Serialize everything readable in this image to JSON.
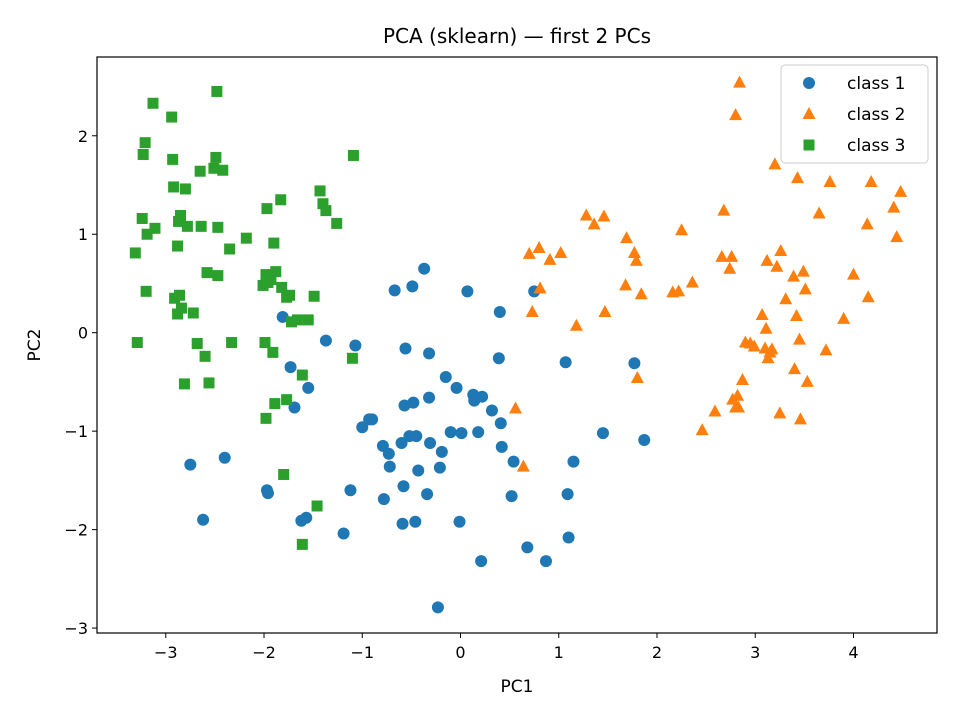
{
  "chart_data": {
    "type": "scatter",
    "title": "PCA (sklearn) — first 2 PCs",
    "xlabel": "PC1",
    "ylabel": "PC2",
    "xlim": [
      -3.7,
      4.85
    ],
    "ylim": [
      -3.05,
      2.8
    ],
    "xticks": [
      -3,
      -2,
      -1,
      0,
      1,
      2,
      3,
      4
    ],
    "yticks": [
      -3,
      -2,
      -1,
      0,
      1,
      2
    ],
    "xtick_labels": [
      "−3",
      "−2",
      "−1",
      "0",
      "1",
      "2",
      "3",
      "4"
    ],
    "ytick_labels": [
      "−3",
      "−2",
      "−1",
      "0",
      "1",
      "2"
    ],
    "grid": false,
    "legend_position": "top-right",
    "series": [
      {
        "name": "class 1",
        "marker": "circle",
        "color": "#1f77b4",
        "points": [
          [
            -2.75,
            -1.34
          ],
          [
            -2.62,
            -1.9
          ],
          [
            -2.4,
            -1.27
          ],
          [
            -1.97,
            -1.6
          ],
          [
            -1.96,
            -1.63
          ],
          [
            -1.81,
            0.16
          ],
          [
            -1.73,
            -0.35
          ],
          [
            -1.69,
            -0.76
          ],
          [
            -1.62,
            -1.91
          ],
          [
            -1.57,
            -1.88
          ],
          [
            -1.55,
            -0.56
          ],
          [
            -1.37,
            -0.08
          ],
          [
            -1.19,
            -2.04
          ],
          [
            -1.12,
            -1.6
          ],
          [
            -1.07,
            -0.13
          ],
          [
            -1.0,
            -0.96
          ],
          [
            -0.93,
            -0.88
          ],
          [
            -0.9,
            -0.88
          ],
          [
            -0.79,
            -1.15
          ],
          [
            -0.78,
            -1.69
          ],
          [
            -0.73,
            -1.23
          ],
          [
            -0.72,
            -1.36
          ],
          [
            -0.67,
            0.43
          ],
          [
            -0.6,
            -1.12
          ],
          [
            -0.59,
            -1.94
          ],
          [
            -0.58,
            -1.56
          ],
          [
            -0.57,
            -0.74
          ],
          [
            -0.56,
            -0.16
          ],
          [
            -0.52,
            -1.05
          ],
          [
            -0.49,
            0.47
          ],
          [
            -0.48,
            -0.71
          ],
          [
            -0.46,
            -1.92
          ],
          [
            -0.45,
            -1.05
          ],
          [
            -0.43,
            -1.4
          ],
          [
            -0.37,
            0.65
          ],
          [
            -0.34,
            -1.64
          ],
          [
            -0.32,
            -0.66
          ],
          [
            -0.32,
            -0.21
          ],
          [
            -0.31,
            -1.12
          ],
          [
            -0.23,
            -2.79
          ],
          [
            -0.21,
            -1.37
          ],
          [
            -0.19,
            -1.21
          ],
          [
            -0.15,
            -0.45
          ],
          [
            -0.1,
            -1.01
          ],
          [
            -0.04,
            -0.56
          ],
          [
            -0.01,
            -1.92
          ],
          [
            0.01,
            -1.02
          ],
          [
            0.07,
            0.42
          ],
          [
            0.13,
            -0.63
          ],
          [
            0.14,
            -0.69
          ],
          [
            0.18,
            -1.01
          ],
          [
            0.21,
            -2.32
          ],
          [
            0.22,
            -0.65
          ],
          [
            0.32,
            -0.79
          ],
          [
            0.39,
            -0.26
          ],
          [
            0.4,
            0.21
          ],
          [
            0.41,
            -0.92
          ],
          [
            0.42,
            -1.16
          ],
          [
            0.54,
            -1.31
          ],
          [
            0.52,
            -1.66
          ],
          [
            0.68,
            -2.18
          ],
          [
            0.75,
            0.42
          ],
          [
            0.87,
            -2.32
          ],
          [
            1.07,
            -0.3
          ],
          [
            1.09,
            -1.64
          ],
          [
            1.1,
            -2.08
          ],
          [
            1.15,
            -1.31
          ],
          [
            1.45,
            -1.02
          ],
          [
            1.77,
            -0.31
          ],
          [
            1.87,
            -1.09
          ]
        ]
      },
      {
        "name": "class 2",
        "marker": "triangle",
        "color": "#ff7f0e",
        "points": [
          [
            0.56,
            -0.77
          ],
          [
            0.64,
            -1.36
          ],
          [
            0.7,
            0.8
          ],
          [
            0.73,
            0.21
          ],
          [
            0.8,
            0.86
          ],
          [
            0.81,
            0.45
          ],
          [
            0.91,
            0.74
          ],
          [
            1.02,
            0.81
          ],
          [
            1.18,
            0.07
          ],
          [
            1.28,
            1.19
          ],
          [
            1.36,
            1.1
          ],
          [
            1.46,
            1.18
          ],
          [
            1.47,
            0.21
          ],
          [
            1.68,
            0.48
          ],
          [
            1.69,
            0.96
          ],
          [
            1.77,
            0.81
          ],
          [
            1.79,
            0.73
          ],
          [
            1.8,
            -0.46
          ],
          [
            1.84,
            0.39
          ],
          [
            2.16,
            0.41
          ],
          [
            2.22,
            0.42
          ],
          [
            2.25,
            1.04
          ],
          [
            2.36,
            0.51
          ],
          [
            2.46,
            -0.99
          ],
          [
            2.59,
            -0.8
          ],
          [
            2.66,
            0.77
          ],
          [
            2.68,
            1.24
          ],
          [
            2.74,
            0.65
          ],
          [
            2.76,
            0.77
          ],
          [
            2.77,
            -0.68
          ],
          [
            2.8,
            2.21
          ],
          [
            2.8,
            -0.76
          ],
          [
            2.82,
            -0.64
          ],
          [
            2.83,
            -0.76
          ],
          [
            2.84,
            2.54
          ],
          [
            2.87,
            -0.48
          ],
          [
            2.9,
            -0.1
          ],
          [
            2.95,
            -0.11
          ],
          [
            2.99,
            -0.14
          ],
          [
            3.07,
            0.18
          ],
          [
            3.1,
            -0.16
          ],
          [
            3.11,
            0.04
          ],
          [
            3.12,
            0.73
          ],
          [
            3.13,
            -0.26
          ],
          [
            3.15,
            -0.2
          ],
          [
            3.17,
            -0.17
          ],
          [
            3.2,
            1.71
          ],
          [
            3.22,
            0.67
          ],
          [
            3.25,
            -0.82
          ],
          [
            3.26,
            0.83
          ],
          [
            3.31,
            0.34
          ],
          [
            3.39,
            0.57
          ],
          [
            3.4,
            -0.37
          ],
          [
            3.42,
            0.17
          ],
          [
            3.43,
            1.57
          ],
          [
            3.45,
            -0.07
          ],
          [
            3.46,
            -0.88
          ],
          [
            3.49,
            0.62
          ],
          [
            3.51,
            0.44
          ],
          [
            3.53,
            -0.5
          ],
          [
            3.65,
            1.21
          ],
          [
            3.72,
            -0.18
          ],
          [
            3.76,
            1.53
          ],
          [
            3.9,
            0.14
          ],
          [
            4.0,
            0.59
          ],
          [
            4.14,
            1.1
          ],
          [
            4.15,
            0.36
          ],
          [
            4.18,
            1.53
          ],
          [
            4.41,
            1.27
          ],
          [
            4.44,
            0.97
          ],
          [
            4.48,
            1.43
          ]
        ]
      },
      {
        "name": "class 3",
        "marker": "square",
        "color": "#2ca02c",
        "points": [
          [
            -3.31,
            0.81
          ],
          [
            -3.29,
            -0.1
          ],
          [
            -3.24,
            1.16
          ],
          [
            -3.23,
            1.81
          ],
          [
            -3.21,
            1.93
          ],
          [
            -3.2,
            0.42
          ],
          [
            -3.19,
            1.0
          ],
          [
            -3.13,
            2.33
          ],
          [
            -3.11,
            1.06
          ],
          [
            -2.94,
            2.19
          ],
          [
            -2.93,
            1.76
          ],
          [
            -2.92,
            1.48
          ],
          [
            -2.91,
            0.35
          ],
          [
            -2.88,
            0.19
          ],
          [
            -2.88,
            0.88
          ],
          [
            -2.87,
            1.13
          ],
          [
            -2.86,
            0.38
          ],
          [
            -2.85,
            1.19
          ],
          [
            -2.84,
            0.25
          ],
          [
            -2.81,
            -0.52
          ],
          [
            -2.8,
            1.46
          ],
          [
            -2.78,
            1.08
          ],
          [
            -2.72,
            0.2
          ],
          [
            -2.68,
            -0.11
          ],
          [
            -2.65,
            1.64
          ],
          [
            -2.64,
            1.08
          ],
          [
            -2.6,
            -0.24
          ],
          [
            -2.58,
            0.61
          ],
          [
            -2.56,
            -0.51
          ],
          [
            -2.51,
            1.67
          ],
          [
            -2.49,
            1.78
          ],
          [
            -2.48,
            2.45
          ],
          [
            -2.47,
            1.07
          ],
          [
            -2.47,
            0.58
          ],
          [
            -2.42,
            1.65
          ],
          [
            -2.35,
            0.85
          ],
          [
            -2.33,
            -0.1
          ],
          [
            -2.18,
            0.96
          ],
          [
            -2.01,
            0.48
          ],
          [
            -1.99,
            -0.1
          ],
          [
            -1.98,
            0.59
          ],
          [
            -1.98,
            -0.87
          ],
          [
            -1.97,
            1.26
          ],
          [
            -1.96,
            0.51
          ],
          [
            -1.93,
            0.54
          ],
          [
            -1.91,
            -0.2
          ],
          [
            -1.9,
            0.91
          ],
          [
            -1.88,
            0.62
          ],
          [
            -1.89,
            -0.72
          ],
          [
            -1.83,
            1.35
          ],
          [
            -1.82,
            0.46
          ],
          [
            -1.8,
            -1.44
          ],
          [
            -1.77,
            0.36
          ],
          [
            -1.77,
            -0.68
          ],
          [
            -1.74,
            0.38
          ],
          [
            -1.72,
            0.11
          ],
          [
            -1.66,
            0.13
          ],
          [
            -1.61,
            -2.15
          ],
          [
            -1.61,
            -0.43
          ],
          [
            -1.55,
            0.13
          ],
          [
            -1.49,
            0.37
          ],
          [
            -1.46,
            -1.76
          ],
          [
            -1.43,
            1.44
          ],
          [
            -1.4,
            1.31
          ],
          [
            -1.37,
            1.24
          ],
          [
            -1.26,
            1.11
          ],
          [
            -1.1,
            -0.26
          ],
          [
            -1.09,
            1.8
          ]
        ]
      }
    ]
  }
}
